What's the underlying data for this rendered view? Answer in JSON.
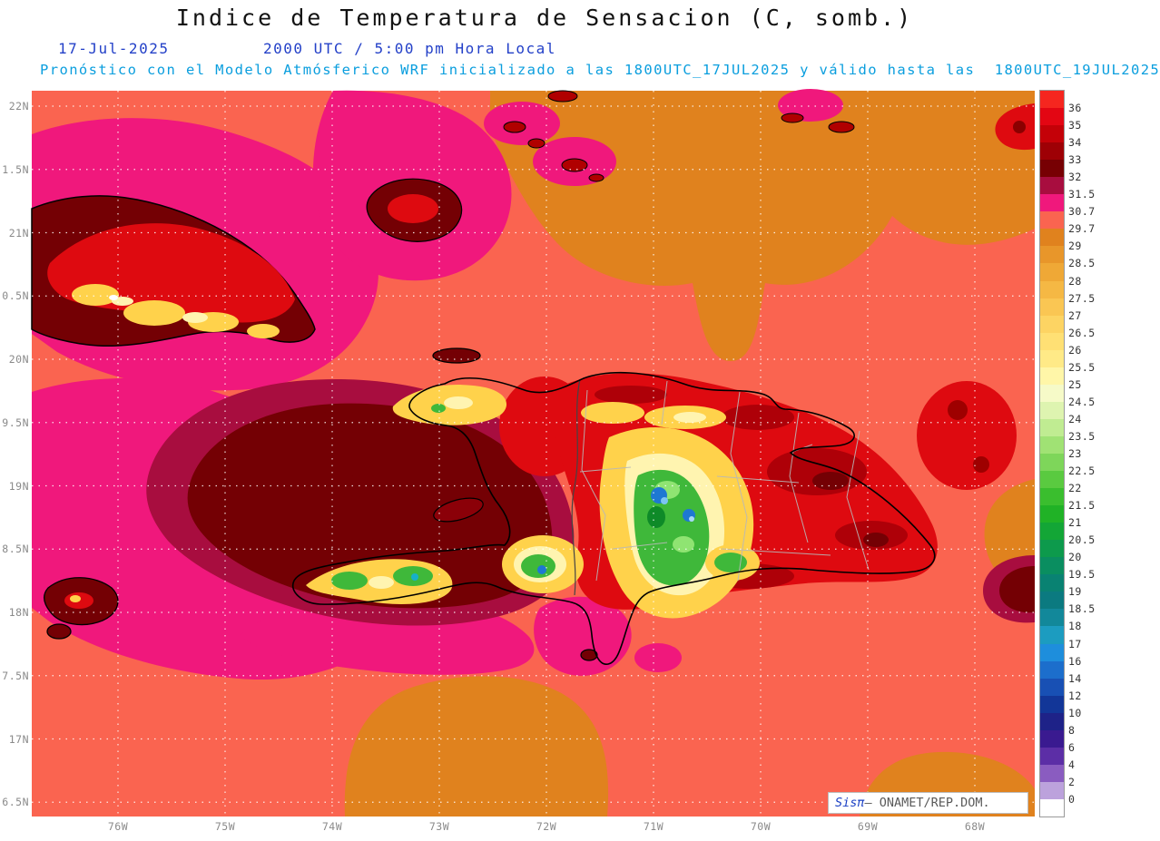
{
  "header": {
    "title": "Indice de Temperatura de Sensacion (C, somb.)",
    "date": "17-Jul-2025",
    "time": "2000 UTC / 5:00 pm Hora Local",
    "forecast": "Pronóstico con el Modelo Atmósferico WRF inicializado a las 1800UTC_17JUL2025 y válido hasta las  1800UTC_19JUL2025"
  },
  "map": {
    "lat_labels": [
      "22N",
      "1.5N",
      "21N",
      "0.5N",
      "20N",
      "9.5N",
      "19N",
      "8.5N",
      "18N",
      "7.5N",
      "17N",
      "6.5N"
    ],
    "lon_labels": [
      "76W",
      "75W",
      "74W",
      "73W",
      "72W",
      "71W",
      "70W",
      "69W",
      "68W"
    ]
  },
  "colorbar": {
    "tick_labels": [
      "36",
      "35",
      "34",
      "33",
      "32",
      "31.5",
      "30.7",
      "29.7",
      "29",
      "28.5",
      "28",
      "27.5",
      "27",
      "26.5",
      "26",
      "25.5",
      "25",
      "24.5",
      "24",
      "23.5",
      "23",
      "22.5",
      "22",
      "21.5",
      "21",
      "20.5",
      "20",
      "19.5",
      "19",
      "18.5",
      "18",
      "17",
      "16",
      "14",
      "12",
      "10",
      "8",
      "6",
      "4",
      "2",
      "0"
    ],
    "cell_colors": [
      "#F5261F",
      "#E30613",
      "#C40108",
      "#9E0005",
      "#770003",
      "#A80D3F",
      "#F0187C",
      "#FA6450",
      "#E0821E",
      "#E8962A",
      "#EFA836",
      "#F5B844",
      "#FAC653",
      "#FDD463",
      "#FFE074",
      "#FFEA87",
      "#FFF6A8",
      "#F6FAC8",
      "#DEF4B0",
      "#C0EC92",
      "#A0E274",
      "#7ED65A",
      "#5ACA40",
      "#3ABE2E",
      "#20B226",
      "#13A636",
      "#0D9A4C",
      "#0A8E60",
      "#098272",
      "#0B7A80",
      "#12889A",
      "#1C9CC0",
      "#1E8EDC",
      "#1C6ECC",
      "#1850B4",
      "#123698",
      "#1E2288",
      "#3A1A90",
      "#5C2EA6",
      "#8A5CC0",
      "#BCA2DC",
      "#FFFFFF"
    ]
  },
  "attribution": {
    "brand": "Sisπ",
    "text": "— ONAMET/REP.DOM."
  }
}
